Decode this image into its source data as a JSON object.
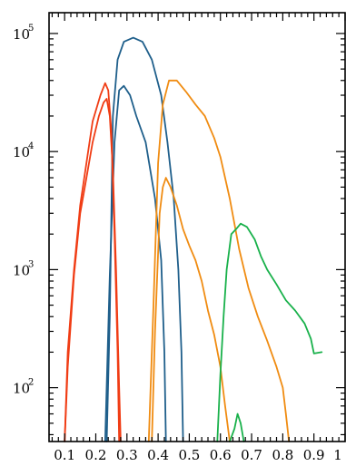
{
  "chart_data": {
    "type": "line",
    "title": "",
    "xlabel": "",
    "ylabel": "",
    "xlim": [
      0.05,
      1.0
    ],
    "ylim": [
      35,
      150000
    ],
    "yscale": "log",
    "grid": false,
    "xticks": [
      0.1,
      0.2,
      0.3,
      0.4,
      0.5,
      0.6,
      0.7,
      0.8,
      0.9,
      1
    ],
    "xtick_labels": [
      "0.1",
      "0.2",
      "0.3",
      "0.4",
      "0.5",
      "0.6",
      "0.7",
      "0.8",
      "0.9",
      "1"
    ],
    "yticks": [
      {
        "value": 100,
        "base": "10",
        "exp": "2"
      },
      {
        "value": 1000,
        "base": "10",
        "exp": "3"
      },
      {
        "value": 10000,
        "base": "10",
        "exp": "4"
      },
      {
        "value": 100000,
        "base": "10",
        "exp": "5"
      }
    ],
    "series": [
      {
        "color": "#1f5f8b",
        "points": [
          [
            0.235,
            35
          ],
          [
            0.245,
            400
          ],
          [
            0.255,
            20000
          ],
          [
            0.27,
            60000
          ],
          [
            0.29,
            85000
          ],
          [
            0.32,
            92000
          ],
          [
            0.35,
            85000
          ],
          [
            0.38,
            60000
          ],
          [
            0.41,
            30000
          ],
          [
            0.43,
            12000
          ],
          [
            0.45,
            4000
          ],
          [
            0.465,
            1000
          ],
          [
            0.475,
            200
          ],
          [
            0.48,
            35
          ]
        ]
      },
      {
        "color": "#1f5f8b",
        "points": [
          [
            0.23,
            35
          ],
          [
            0.245,
            900
          ],
          [
            0.26,
            12000
          ],
          [
            0.275,
            33000
          ],
          [
            0.29,
            36000
          ],
          [
            0.31,
            30000
          ],
          [
            0.33,
            20000
          ],
          [
            0.36,
            12000
          ],
          [
            0.39,
            4000
          ],
          [
            0.41,
            1200
          ],
          [
            0.42,
            200
          ],
          [
            0.425,
            35
          ]
        ]
      },
      {
        "color": "#f08c12",
        "points": [
          [
            0.37,
            35
          ],
          [
            0.385,
            500
          ],
          [
            0.4,
            8000
          ],
          [
            0.415,
            25000
          ],
          [
            0.435,
            40000
          ],
          [
            0.46,
            40000
          ],
          [
            0.49,
            32000
          ],
          [
            0.52,
            25000
          ],
          [
            0.55,
            20000
          ],
          [
            0.58,
            13000
          ],
          [
            0.6,
            9000
          ],
          [
            0.63,
            4000
          ],
          [
            0.66,
            1500
          ],
          [
            0.69,
            700
          ],
          [
            0.72,
            400
          ],
          [
            0.75,
            250
          ],
          [
            0.78,
            150
          ],
          [
            0.8,
            100
          ],
          [
            0.81,
            60
          ],
          [
            0.82,
            35
          ]
        ]
      },
      {
        "color": "#f08c12",
        "points": [
          [
            0.38,
            35
          ],
          [
            0.39,
            300
          ],
          [
            0.405,
            3000
          ],
          [
            0.415,
            5000
          ],
          [
            0.425,
            6000
          ],
          [
            0.44,
            5000
          ],
          [
            0.46,
            3500
          ],
          [
            0.48,
            2200
          ],
          [
            0.5,
            1600
          ],
          [
            0.52,
            1200
          ],
          [
            0.54,
            800
          ],
          [
            0.56,
            450
          ],
          [
            0.58,
            280
          ],
          [
            0.6,
            150
          ],
          [
            0.615,
            70
          ],
          [
            0.63,
            35
          ]
        ]
      },
      {
        "color": "#f03c14",
        "points": [
          [
            0.1,
            35
          ],
          [
            0.11,
            200
          ],
          [
            0.13,
            1000
          ],
          [
            0.15,
            3500
          ],
          [
            0.17,
            8000
          ],
          [
            0.19,
            18000
          ],
          [
            0.215,
            30000
          ],
          [
            0.23,
            38000
          ],
          [
            0.24,
            33000
          ],
          [
            0.25,
            15000
          ],
          [
            0.26,
            2000
          ],
          [
            0.27,
            200
          ],
          [
            0.275,
            35
          ]
        ]
      },
      {
        "color": "#f03c14",
        "points": [
          [
            0.1,
            35
          ],
          [
            0.11,
            150
          ],
          [
            0.13,
            900
          ],
          [
            0.15,
            3000
          ],
          [
            0.17,
            6000
          ],
          [
            0.19,
            12000
          ],
          [
            0.21,
            20000
          ],
          [
            0.225,
            26000
          ],
          [
            0.235,
            28000
          ],
          [
            0.245,
            20000
          ],
          [
            0.255,
            7000
          ],
          [
            0.265,
            1000
          ],
          [
            0.275,
            100
          ],
          [
            0.28,
            35
          ]
        ]
      },
      {
        "color": "#19b14b",
        "points": [
          [
            0.59,
            35
          ],
          [
            0.6,
            130
          ],
          [
            0.61,
            400
          ],
          [
            0.62,
            1000
          ],
          [
            0.635,
            2000
          ],
          [
            0.65,
            2200
          ],
          [
            0.665,
            2450
          ],
          [
            0.685,
            2300
          ],
          [
            0.71,
            1800
          ],
          [
            0.73,
            1300
          ],
          [
            0.75,
            1000
          ],
          [
            0.78,
            750
          ],
          [
            0.81,
            550
          ],
          [
            0.84,
            450
          ],
          [
            0.87,
            350
          ],
          [
            0.89,
            260
          ],
          [
            0.9,
            195
          ],
          [
            0.925,
            200
          ]
        ]
      },
      {
        "color": "#19b14b",
        "points": [
          [
            0.63,
            35
          ],
          [
            0.645,
            45
          ],
          [
            0.655,
            60
          ],
          [
            0.665,
            50
          ],
          [
            0.675,
            35
          ]
        ]
      }
    ]
  }
}
